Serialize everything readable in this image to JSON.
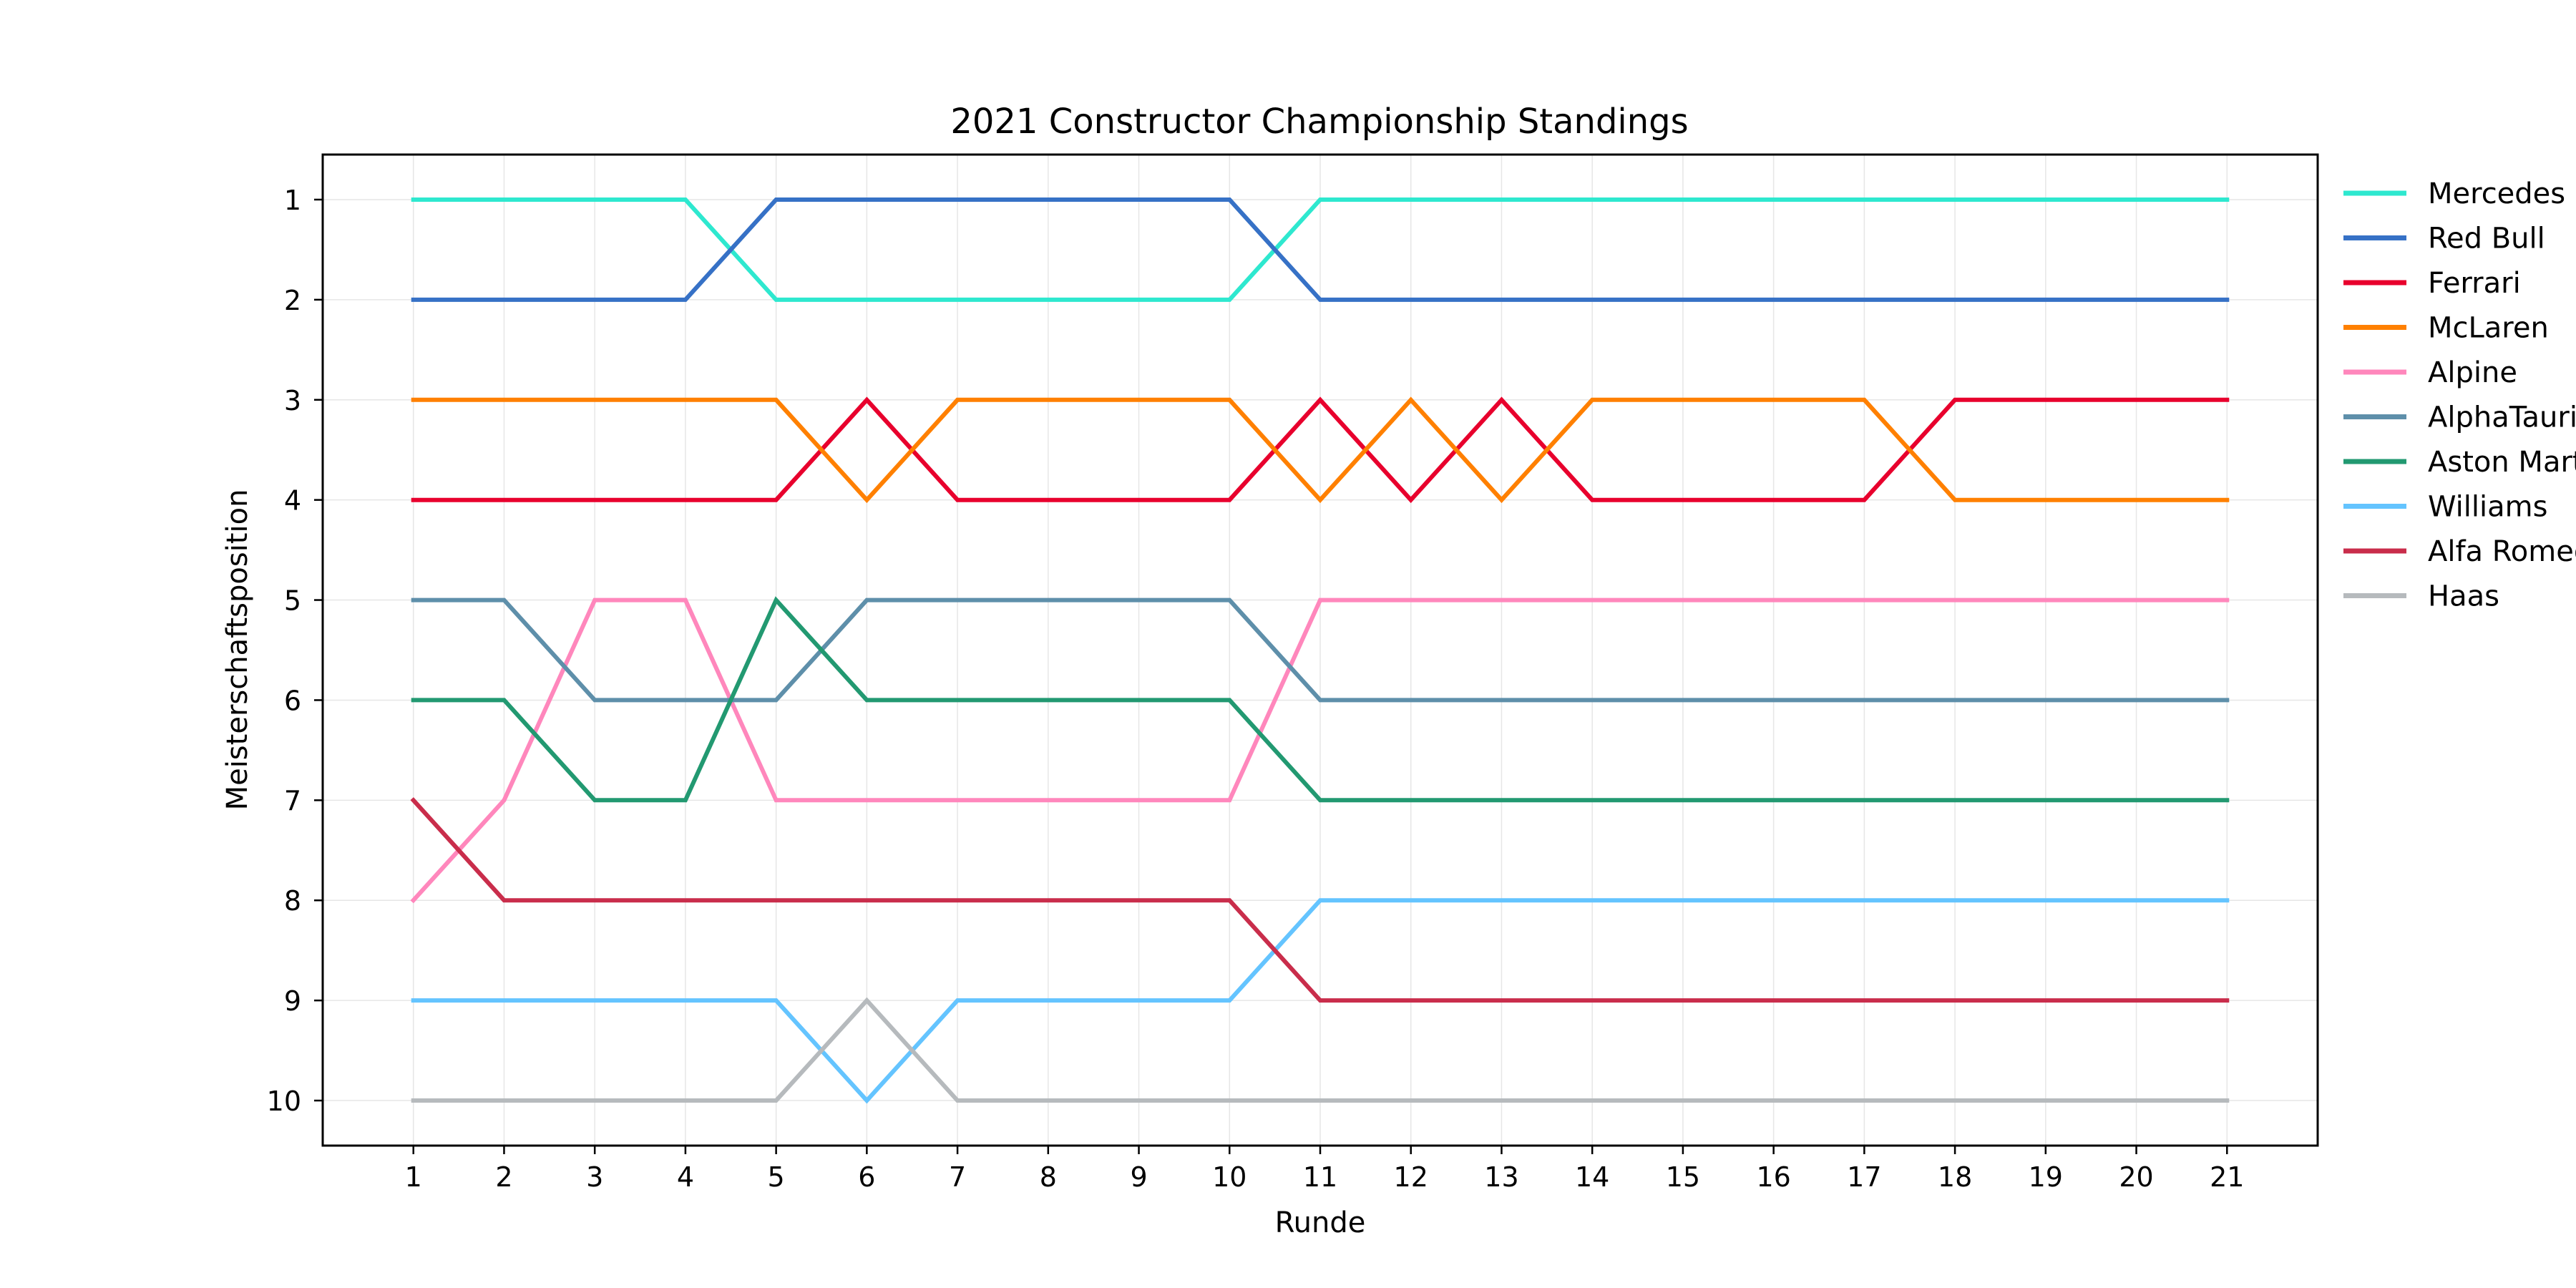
{
  "chart_data": {
    "type": "line",
    "title": "2021 Constructor Championship Standings",
    "xlabel": "Runde",
    "ylabel": "Meisterschaftsposition",
    "x": [
      1,
      2,
      3,
      4,
      5,
      6,
      7,
      8,
      9,
      10,
      11,
      12,
      13,
      14,
      15,
      16,
      17,
      18,
      19,
      20,
      21
    ],
    "xticks": [
      "1",
      "2",
      "3",
      "4",
      "5",
      "6",
      "7",
      "8",
      "9",
      "10",
      "11",
      "12",
      "13",
      "14",
      "15",
      "16",
      "17",
      "18",
      "19",
      "20",
      "21"
    ],
    "yticks": [
      "1",
      "2",
      "3",
      "4",
      "5",
      "6",
      "7",
      "8",
      "9",
      "10"
    ],
    "xlim": [
      0,
      22
    ],
    "ylim": [
      10.45,
      0.55
    ],
    "y_inverted": true,
    "grid": true,
    "legend_position": "outside-right-top",
    "series": [
      {
        "name": "Mercedes",
        "color": "#2EE8CF",
        "values": [
          1,
          1,
          1,
          1,
          2,
          2,
          2,
          2,
          2,
          2,
          1,
          1,
          1,
          1,
          1,
          1,
          1,
          1,
          1,
          1,
          1
        ]
      },
      {
        "name": "Red Bull",
        "color": "#3671C6",
        "values": [
          2,
          2,
          2,
          2,
          1,
          1,
          1,
          1,
          1,
          1,
          2,
          2,
          2,
          2,
          2,
          2,
          2,
          2,
          2,
          2,
          2
        ]
      },
      {
        "name": "Ferrari",
        "color": "#E8002D",
        "values": [
          4,
          4,
          4,
          4,
          4,
          3,
          4,
          4,
          4,
          4,
          3,
          4,
          3,
          4,
          4,
          4,
          4,
          3,
          3,
          3,
          3
        ]
      },
      {
        "name": "McLaren",
        "color": "#FF8000",
        "values": [
          3,
          3,
          3,
          3,
          3,
          4,
          3,
          3,
          3,
          3,
          4,
          3,
          4,
          3,
          3,
          3,
          3,
          4,
          4,
          4,
          4
        ]
      },
      {
        "name": "Alpine",
        "color": "#FF87BC",
        "values": [
          8,
          7,
          5,
          5,
          7,
          7,
          7,
          7,
          7,
          7,
          5,
          5,
          5,
          5,
          5,
          5,
          5,
          5,
          5,
          5,
          5
        ]
      },
      {
        "name": "AlphaTauri",
        "color": "#5E8FAA",
        "values": [
          5,
          5,
          6,
          6,
          6,
          5,
          5,
          5,
          5,
          5,
          6,
          6,
          6,
          6,
          6,
          6,
          6,
          6,
          6,
          6,
          6
        ]
      },
      {
        "name": "Aston Martin",
        "color": "#229971",
        "values": [
          6,
          6,
          7,
          7,
          5,
          6,
          6,
          6,
          6,
          6,
          7,
          7,
          7,
          7,
          7,
          7,
          7,
          7,
          7,
          7,
          7
        ]
      },
      {
        "name": "Williams",
        "color": "#64C4FF",
        "values": [
          9,
          9,
          9,
          9,
          9,
          10,
          9,
          9,
          9,
          9,
          8,
          8,
          8,
          8,
          8,
          8,
          8,
          8,
          8,
          8,
          8
        ]
      },
      {
        "name": "Alfa Romeo",
        "color": "#C92D4B",
        "values": [
          7,
          8,
          8,
          8,
          8,
          8,
          8,
          8,
          8,
          8,
          9,
          9,
          9,
          9,
          9,
          9,
          9,
          9,
          9,
          9,
          9
        ]
      },
      {
        "name": "Haas",
        "color": "#B6BABD",
        "values": [
          10,
          10,
          10,
          10,
          10,
          9,
          10,
          10,
          10,
          10,
          10,
          10,
          10,
          10,
          10,
          10,
          10,
          10,
          10,
          10,
          10
        ]
      }
    ]
  }
}
